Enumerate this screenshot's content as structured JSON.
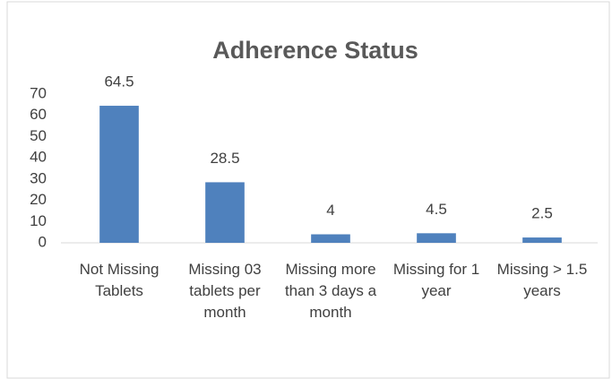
{
  "chart_data": {
    "type": "bar",
    "title": "Adherence Status",
    "categories": [
      "Not Missing Tablets",
      "Missing 03 tablets per month",
      "Missing more than 3 days a month",
      "Missing for 1 year",
      "Missing > 1.5 years"
    ],
    "values": [
      64.5,
      28.5,
      4,
      4.5,
      2.5
    ],
    "color": "#4f81bd",
    "ylim": [
      0,
      70
    ],
    "yticks": [
      0,
      10,
      20,
      30,
      40,
      50,
      60,
      70
    ],
    "grid": false
  }
}
